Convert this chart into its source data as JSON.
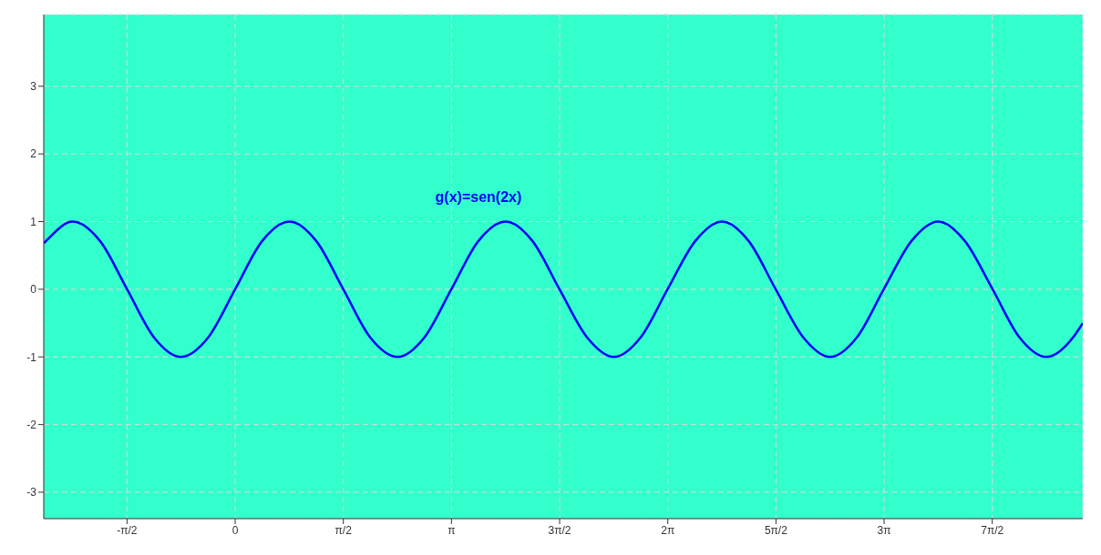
{
  "chart_data": {
    "type": "line",
    "x": [
      -2.78,
      -2.75,
      -2.36,
      -1.96,
      -1.57,
      -1.18,
      -0.79,
      -0.39,
      0,
      0.39,
      0.79,
      1.18,
      1.57,
      1.96,
      2.36,
      2.75,
      3.14,
      3.53,
      3.93,
      4.32,
      4.71,
      5.11,
      5.5,
      5.89,
      6.28,
      6.68,
      7.07,
      7.46,
      7.85,
      8.25,
      8.64,
      9.03,
      9.42,
      9.82,
      10.21,
      10.6,
      11,
      11.39,
      11.78,
      12.17,
      12.31
    ],
    "series": [
      {
        "name": "g(x)=sen(2x)",
        "color": "#0000ff",
        "values": [
          0.68,
          0.71,
          1,
          0.71,
          0,
          -0.71,
          -1,
          -0.71,
          0,
          0.71,
          1,
          0.71,
          0,
          -0.71,
          -1,
          -0.71,
          0,
          0.71,
          1,
          0.71,
          0,
          -0.71,
          -1,
          -0.71,
          0,
          0.71,
          1,
          0.71,
          0,
          -0.71,
          -1,
          -0.71,
          0,
          0.71,
          1,
          0.71,
          0,
          -0.71,
          -1,
          -0.71,
          -0.5
        ]
      }
    ],
    "xlim": [
      -2.78,
      12.31
    ],
    "xticks": [
      {
        "value": -1.5708,
        "label": "-π/2"
      },
      0,
      {
        "value": 1.5708,
        "label": "π/2"
      },
      {
        "value": 3.1416,
        "label": "π"
      },
      {
        "value": 4.7124,
        "label": "3π/2"
      },
      {
        "value": 6.2832,
        "label": "2π"
      },
      {
        "value": 7.854,
        "label": "5π/2"
      },
      {
        "value": 9.4248,
        "label": "3π"
      },
      {
        "value": 10.9956,
        "label": "7π/2"
      }
    ],
    "ylim": [
      -3.39,
      4.06
    ],
    "yticks": [
      -3,
      -2,
      -1,
      0,
      1,
      2,
      3
    ],
    "grid": true,
    "legend": false,
    "marker": "none",
    "line_style": "solid"
  }
}
